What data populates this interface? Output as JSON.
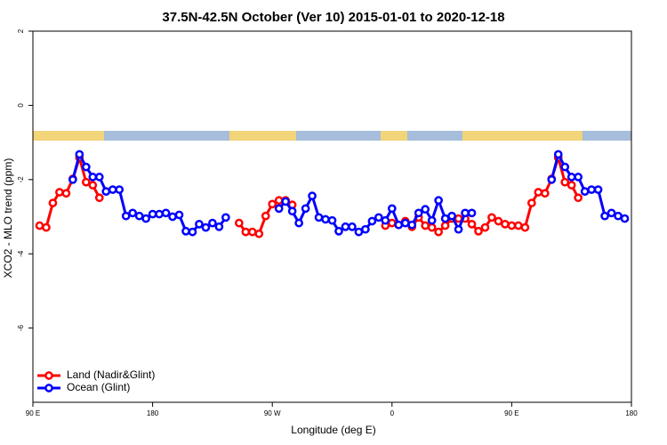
{
  "chart_data": {
    "type": "line",
    "title": "37.5N-42.5N October (Ver 10)   2015-01-01 to 2020-12-18",
    "x_label": "Longitude (deg E)",
    "y_label": "XCO2 - MLO trend (ppm)",
    "xlim": [
      90,
      540
    ],
    "ylim": [
      -8,
      2
    ],
    "xticks": [
      {
        "value": 90,
        "label": "90 E"
      },
      {
        "value": 180,
        "label": "180"
      },
      {
        "value": 270,
        "label": "90 W"
      },
      {
        "value": 360,
        "label": "0"
      },
      {
        "value": 450,
        "label": "90 E"
      },
      {
        "value": 540,
        "label": "180"
      }
    ],
    "yticks": [
      -6,
      -4,
      -2,
      0,
      2
    ],
    "legend": "bottom-left",
    "x": [
      95,
      100,
      105,
      110,
      115,
      120,
      125,
      130,
      135,
      140,
      145,
      150,
      155,
      160,
      165,
      170,
      175,
      180,
      185,
      190,
      195,
      200,
      205,
      210,
      215,
      220,
      225,
      230,
      235,
      240,
      245,
      250,
      255,
      260,
      265,
      270,
      275,
      280,
      285,
      290,
      295,
      300,
      305,
      310,
      315,
      320,
      325,
      330,
      335,
      340,
      345,
      350,
      355,
      360,
      365,
      370,
      375,
      380,
      385,
      390,
      395,
      400,
      405,
      410,
      415,
      420,
      425,
      430,
      435,
      440,
      445,
      450,
      455,
      460,
      465,
      470,
      475,
      480,
      485,
      490,
      495,
      500,
      505,
      510,
      515,
      520,
      525,
      530,
      535
    ],
    "series": [
      {
        "name": "Land (Nadir&Glint)",
        "color": "#ff0000",
        "values": [
          -3.24,
          -3.29,
          -2.63,
          -2.34,
          -2.37,
          -1.98,
          -1.41,
          -2.07,
          -2.15,
          -2.49,
          null,
          null,
          null,
          null,
          null,
          null,
          null,
          null,
          null,
          null,
          null,
          null,
          null,
          null,
          null,
          null,
          null,
          null,
          null,
          null,
          -3.17,
          -3.41,
          -3.41,
          -3.46,
          -2.98,
          -2.66,
          -2.56,
          -2.56,
          -2.68,
          null,
          null,
          null,
          null,
          null,
          null,
          null,
          null,
          null,
          null,
          null,
          null,
          null,
          -3.24,
          -3.17,
          -3.22,
          -3.12,
          -3.27,
          -3.02,
          -3.24,
          -3.29,
          -3.41,
          -3.24,
          -3.05,
          -3.05,
          -3.05,
          -3.2,
          -3.39,
          -3.29,
          -3.02,
          -3.12,
          -3.2,
          -3.24,
          -3.24,
          -3.29,
          -2.63,
          -2.34,
          -2.37,
          -1.98,
          -1.41,
          -2.07,
          -2.15,
          -2.49,
          null,
          null,
          null,
          null,
          null,
          null,
          null
        ]
      },
      {
        "name": "Ocean (Glint)",
        "color": "#0000ff",
        "values": [
          null,
          null,
          null,
          null,
          null,
          -2.0,
          -1.32,
          -1.66,
          -1.93,
          -1.93,
          -2.32,
          -2.27,
          -2.27,
          -2.98,
          -2.9,
          -2.98,
          -3.05,
          -2.93,
          -2.93,
          -2.9,
          -3.0,
          -2.95,
          -3.39,
          -3.41,
          -3.2,
          -3.29,
          -3.17,
          -3.27,
          -3.02,
          null,
          null,
          null,
          null,
          null,
          null,
          null,
          -2.78,
          -2.59,
          -2.85,
          -3.17,
          -2.78,
          -2.44,
          -3.02,
          -3.07,
          -3.1,
          -3.39,
          -3.27,
          -3.27,
          -3.41,
          -3.34,
          -3.12,
          -3.02,
          -3.1,
          -2.78,
          -3.22,
          -3.17,
          -3.22,
          -2.9,
          -2.8,
          -3.1,
          -2.56,
          -3.05,
          -2.98,
          -3.34,
          -2.9,
          -2.9,
          null,
          null,
          null,
          null,
          null,
          null,
          null,
          null,
          null,
          null,
          null,
          -2.0,
          -1.32,
          -1.66,
          -1.93,
          -1.93,
          -2.32,
          -2.27,
          -2.27,
          -2.98,
          -2.9,
          -2.98,
          -3.05
        ]
      }
    ]
  }
}
